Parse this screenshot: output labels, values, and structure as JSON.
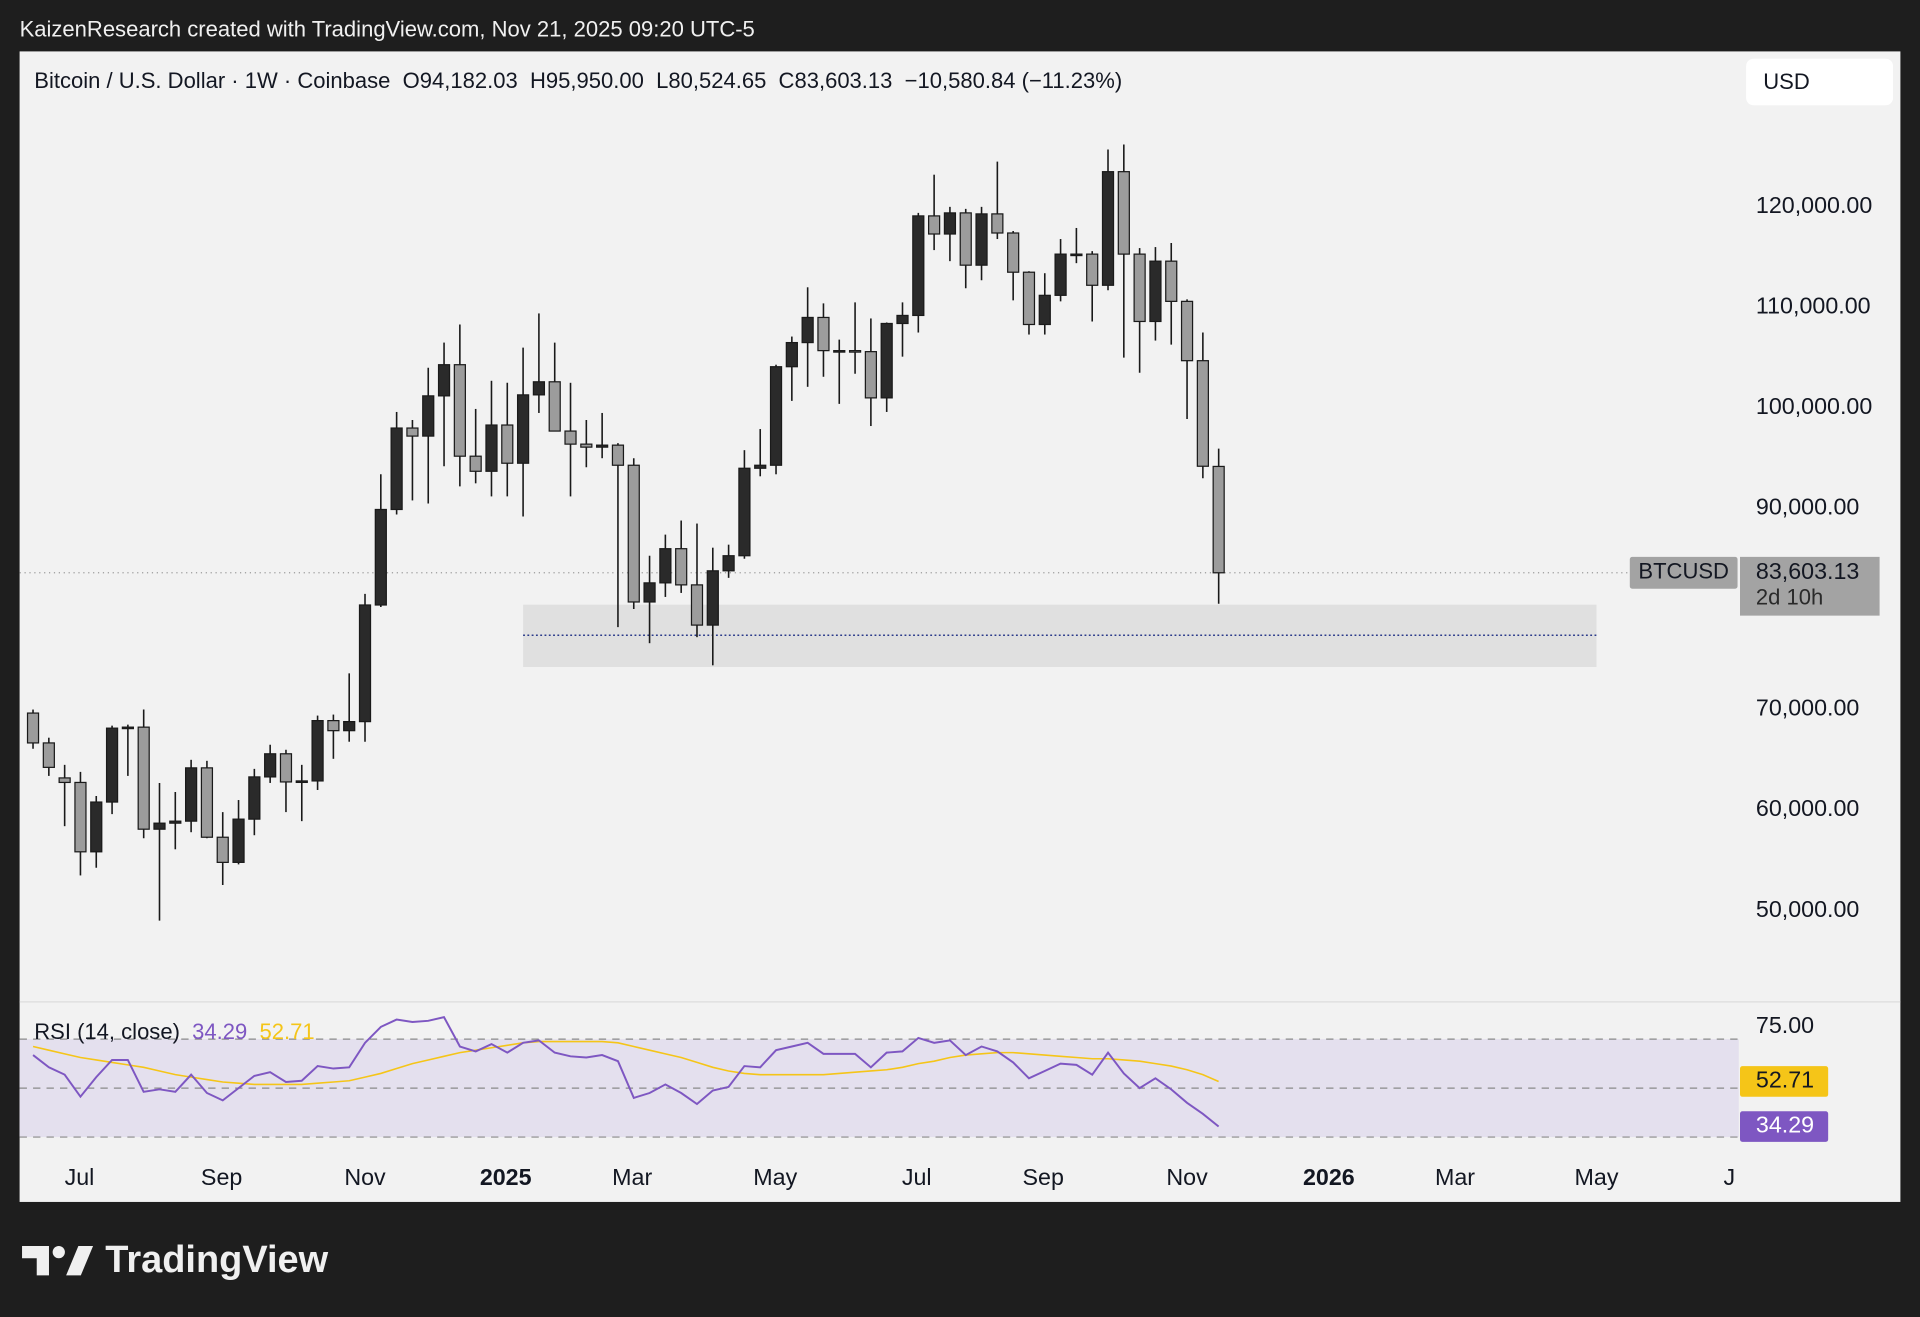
{
  "banner": "KaizenResearch created with TradingView.com, Nov 21, 2025 09:20 UTC-5",
  "currency": "USD",
  "footer": {
    "brand": "TradingView"
  },
  "chart_data": [
    {
      "type": "candlestick",
      "title": "Bitcoin / U.S. Dollar · 1W · Coinbase",
      "ohlc_labels": [
        "O94,182.03",
        "H95,950.00",
        "L80,524.65",
        "C83,603.13"
      ],
      "change_label": "−10,580.84 (−11.23%)",
      "symbol_tag": "BTCUSD",
      "close_label": "83,603.13",
      "countdown": "2d 10h",
      "up_color": "#2a2a2a",
      "down_color": "#9c9c9c",
      "open": [
        69650,
        66680,
        63200,
        62750,
        55850,
        60800,
        68150,
        68250,
        58100,
        58700,
        58900,
        64200,
        57300,
        54800,
        59100,
        63300,
        65600,
        62800,
        62900,
        68900,
        67900,
        68800,
        80400,
        89900,
        98000,
        97200,
        101200,
        104300,
        95200,
        93700,
        98300,
        94500,
        101300,
        102600,
        97700,
        96400,
        96100,
        96300,
        94300,
        80700,
        82600,
        86000,
        82400,
        78400,
        83800,
        85300,
        94000,
        94300,
        104100,
        106500,
        109000,
        105700,
        105700,
        105600,
        101000,
        108400,
        109200,
        119100,
        117300,
        119400,
        114200,
        119300,
        117400,
        113500,
        108300,
        111200,
        115300,
        115300,
        112200,
        123500,
        115300,
        108600,
        114600,
        110600,
        104700,
        94182.03
      ],
      "high": [
        70000,
        67200,
        64500,
        63800,
        61400,
        68400,
        68500,
        70000,
        62700,
        61800,
        65000,
        64900,
        59800,
        61000,
        64100,
        66500,
        66000,
        64500,
        69400,
        69500,
        73600,
        81500,
        93400,
        99600,
        98800,
        104000,
        106500,
        108300,
        99900,
        102700,
        102500,
        106000,
        109400,
        106500,
        102500,
        98800,
        99500,
        96500,
        95000,
        85300,
        87400,
        88800,
        88500,
        86100,
        86400,
        95800,
        97900,
        104300,
        107100,
        112000,
        110400,
        106800,
        110500,
        108900,
        108500,
        110500,
        119400,
        123200,
        120000,
        119800,
        120000,
        124500,
        117600,
        113600,
        113400,
        116800,
        117900,
        115600,
        125700,
        126200,
        115900,
        116000,
        116400,
        110800,
        107500,
        95950
      ],
      "low": [
        66100,
        63400,
        58400,
        53500,
        54260,
        59600,
        63400,
        57200,
        49000,
        56100,
        57800,
        57200,
        52550,
        54600,
        57500,
        62700,
        59800,
        58900,
        62000,
        65100,
        66800,
        66800,
        80200,
        89400,
        90800,
        90500,
        94200,
        92200,
        92500,
        91200,
        91200,
        89200,
        99500,
        97800,
        91200,
        94100,
        95000,
        78200,
        80000,
        76600,
        81200,
        81600,
        77200,
        74400,
        83100,
        85000,
        93200,
        93400,
        100700,
        102100,
        103100,
        100400,
        103400,
        98200,
        99600,
        105100,
        107500,
        115700,
        114600,
        111900,
        112700,
        116800,
        110700,
        107300,
        107300,
        110600,
        114400,
        108600,
        111700,
        105000,
        103500,
        106700,
        106300,
        98900,
        93000,
        80524.65
      ],
      "close": [
        66680,
        64250,
        62750,
        55850,
        60800,
        68150,
        68250,
        58100,
        58700,
        58900,
        64200,
        57300,
        54800,
        59100,
        63300,
        65600,
        62800,
        62900,
        68900,
        67900,
        68800,
        80400,
        89900,
        98000,
        97200,
        101200,
        104300,
        95200,
        93700,
        98300,
        94500,
        101300,
        102600,
        97700,
        96400,
        96100,
        96300,
        94300,
        80700,
        82600,
        86000,
        82400,
        78400,
        83800,
        85300,
        94000,
        94300,
        104100,
        106500,
        109000,
        105700,
        105700,
        105600,
        101000,
        108400,
        109200,
        119100,
        117300,
        119400,
        114200,
        119300,
        117400,
        113500,
        108300,
        111200,
        115300,
        115300,
        112200,
        123500,
        115300,
        108600,
        114600,
        110600,
        104700,
        94200,
        83603.13
      ],
      "xlim": [
        -0.85,
        107.9
      ],
      "xticks": [
        {
          "value": 2.94,
          "label": "Jul"
        },
        {
          "value": 11.93,
          "label": "Sep"
        },
        {
          "value": 21.0,
          "label": "Nov"
        },
        {
          "value": 29.9,
          "label": "2025"
        },
        {
          "value": 37.9,
          "label": "Mar"
        },
        {
          "value": 46.95,
          "label": "May"
        },
        {
          "value": 55.9,
          "label": "Jul"
        },
        {
          "value": 63.9,
          "label": "Sep"
        },
        {
          "value": 73.0,
          "label": "Nov"
        },
        {
          "value": 81.97,
          "label": "2026"
        },
        {
          "value": 89.95,
          "label": "Mar"
        },
        {
          "value": 98.9,
          "label": "May"
        },
        {
          "value": 107.3,
          "label": "J"
        }
      ],
      "ylim": [
        40990,
        135340
      ],
      "yticks": [
        {
          "value": 50000,
          "label": "50,000.00"
        },
        {
          "value": 60000,
          "label": "60,000.00"
        },
        {
          "value": 70000,
          "label": "70,000.00"
        },
        {
          "value": 90000,
          "label": "90,000.00"
        },
        {
          "value": 100000,
          "label": "100,000.00"
        },
        {
          "value": 110000,
          "label": "110,000.00"
        },
        {
          "value": 120000,
          "label": "120,000.00"
        }
      ],
      "zone": {
        "x": [
          31.0,
          98.9
        ],
        "low": 74230,
        "high": 80430,
        "mid": 77390,
        "color": "#e0e0e0",
        "line_color": "#2a3a8a"
      }
    },
    {
      "type": "line",
      "title": "RSI (14, close)",
      "series": [
        {
          "color": "#7e57c2",
          "values": [
            63.5,
            58.5,
            55.5,
            46.5,
            54.5,
            61.5,
            61.5,
            48.5,
            49.5,
            48.5,
            55.5,
            48,
            45,
            50,
            55,
            56.5,
            52.5,
            53,
            59,
            58,
            58.5,
            68.5,
            75,
            78,
            77,
            77.5,
            79,
            67,
            65,
            68,
            64.5,
            68.5,
            69.5,
            64.5,
            63,
            62.5,
            63.5,
            61,
            46,
            48,
            51.5,
            48,
            43.5,
            49,
            50.5,
            59,
            58.5,
            65.5,
            67,
            68.5,
            64,
            64,
            64,
            58.5,
            64.5,
            65,
            70.5,
            68.5,
            69.5,
            63.5,
            67,
            65,
            60.5,
            54,
            57,
            60,
            59.5,
            55.5,
            64.5,
            56,
            50,
            54,
            49.5,
            44,
            39.5,
            34.29
          ]
        },
        {
          "color": "#f5c518",
          "values": [
            67,
            65.5,
            64,
            62.5,
            61.5,
            60.5,
            59.5,
            58.5,
            57,
            55.5,
            54.5,
            53.5,
            52.5,
            52,
            51.5,
            51.5,
            51.5,
            51.5,
            52,
            52.5,
            53,
            54.5,
            56,
            58,
            60,
            61.5,
            63,
            64.5,
            65.5,
            66.5,
            67.5,
            68.5,
            69,
            69,
            69,
            69,
            69,
            68.5,
            67,
            65.5,
            64,
            62.5,
            60.5,
            58.5,
            57,
            56,
            55.5,
            55.5,
            55.5,
            55.5,
            55.5,
            56,
            56.5,
            57,
            57.5,
            58.5,
            60,
            61,
            62.5,
            63.5,
            64,
            64.5,
            64.5,
            64,
            63.5,
            63,
            62.5,
            62,
            62,
            61.5,
            61,
            60,
            59,
            57.5,
            55.5,
            52.71
          ]
        }
      ],
      "ylim": [
        20.5,
        85
      ],
      "yticks": [
        {
          "value": 75,
          "label": "75.00"
        }
      ],
      "levels": [
        70,
        50,
        30
      ],
      "band_color": "#e4e0ee"
    }
  ]
}
